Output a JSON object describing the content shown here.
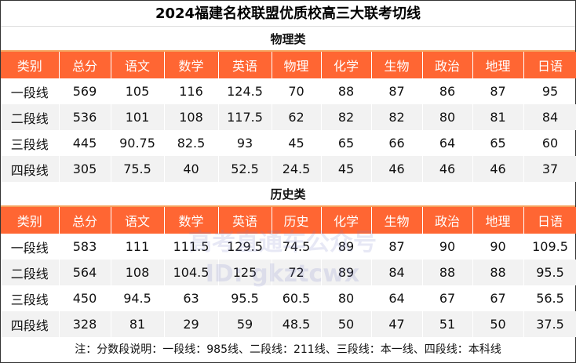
{
  "title": "2024福建名校联盟优质校高三大联考切线",
  "columns_physics": [
    "类别",
    "总分",
    "语文",
    "数学",
    "英语",
    "物理",
    "化学",
    "生物",
    "政治",
    "地理",
    "日语"
  ],
  "columns_history": [
    "类别",
    "总分",
    "语文",
    "数学",
    "英语",
    "历史",
    "化学",
    "生物",
    "政治",
    "地理",
    "日语"
  ],
  "physics": {
    "label": "物理类",
    "rows": [
      [
        "一段线",
        "569",
        "105",
        "116",
        "124.5",
        "70",
        "88",
        "87",
        "86",
        "87",
        "95"
      ],
      [
        "二段线",
        "536",
        "101",
        "108",
        "117.5",
        "62",
        "82",
        "82",
        "80",
        "81",
        "84"
      ],
      [
        "三段线",
        "445",
        "90.75",
        "82.5",
        "93",
        "45",
        "65",
        "66",
        "64",
        "65",
        "60"
      ],
      [
        "四段线",
        "305",
        "75.5",
        "40",
        "52.5",
        "24.5",
        "45",
        "46",
        "46",
        "46",
        "37"
      ]
    ]
  },
  "history": {
    "label": "历史类",
    "rows": [
      [
        "一段线",
        "583",
        "111",
        "111.5",
        "129.5",
        "74.5",
        "89",
        "87",
        "90",
        "90",
        "109.5"
      ],
      [
        "二段线",
        "564",
        "108",
        "104.5",
        "125",
        "72",
        "89",
        "84",
        "88",
        "88",
        "95.5"
      ],
      [
        "三段线",
        "450",
        "94.5",
        "63",
        "95.5",
        "60.5",
        "80",
        "64",
        "67",
        "67",
        "56.5"
      ],
      [
        "四段线",
        "328",
        "81",
        "29",
        "59",
        "48.5",
        "50",
        "47",
        "51",
        "50",
        "37.5"
      ]
    ]
  },
  "note": "注：分数段说明：一段线：985线、二段线：211线、三段线：本一线、四段线：本科线",
  "watermark": {
    "line1": "高考直通车公众号",
    "line2": "ID: gkztcwx"
  },
  "colors": {
    "header": "#ff6633",
    "alt_row": "#f2f2f2"
  }
}
